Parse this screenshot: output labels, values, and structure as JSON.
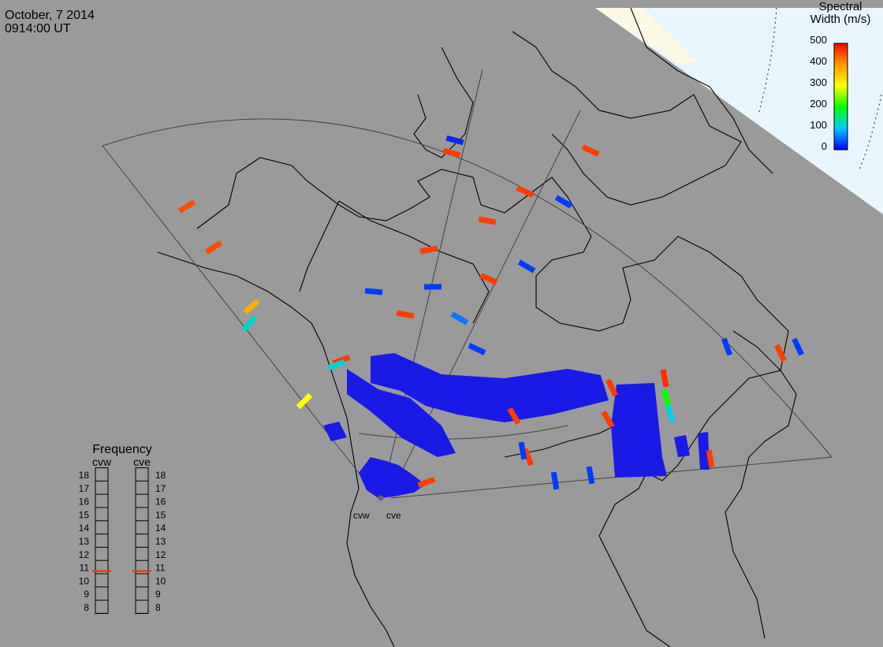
{
  "header": {
    "date": "October, 7 2014",
    "time": "0914:00 UT"
  },
  "colorbar": {
    "title": [
      "Spectral",
      "Width (m/s)"
    ],
    "ticks": [
      500,
      400,
      300,
      200,
      100,
      0
    ],
    "lim": [
      0,
      500
    ]
  },
  "frequency": {
    "title": "Frequency",
    "radars": [
      {
        "name": "cvw",
        "value": 10.7
      },
      {
        "name": "cve",
        "value": 10.7
      }
    ],
    "ticks": [
      18,
      17,
      16,
      15,
      14,
      13,
      12,
      11,
      10,
      9,
      8
    ],
    "lim": [
      8,
      18
    ]
  },
  "echoes": [
    450,
    450,
    380,
    120,
    300,
    20,
    460,
    460,
    460,
    30,
    460,
    460,
    460,
    460,
    60,
    30,
    30,
    30,
    30,
    460,
    120,
    470,
    200,
    110,
    460,
    460,
    460,
    460,
    460,
    30,
    30,
    460,
    30,
    30,
    30,
    460
  ]
}
